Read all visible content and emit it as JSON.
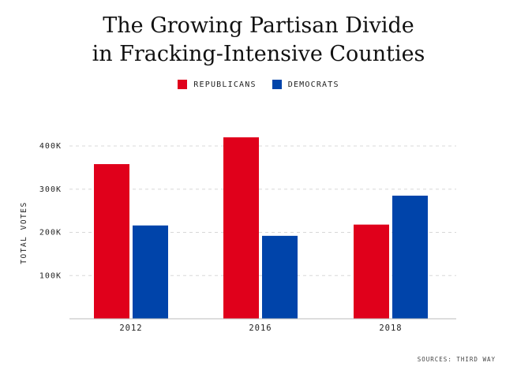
{
  "title_line1": "The Growing Partisan Divide",
  "title_line2": "in Fracking-Intensive Counties",
  "legend": [
    {
      "label": "REPUBLICANS",
      "color": "#e0001b"
    },
    {
      "label": "DEMOCRATS",
      "color": "#0044aa"
    }
  ],
  "source": "SOURCES: THIRD WAY",
  "chart_data": {
    "type": "bar",
    "title": "The Growing Partisan Divide in Fracking-Intensive Counties",
    "categories": [
      "2012",
      "2016",
      "2018"
    ],
    "series": [
      {
        "name": "REPUBLICANS",
        "color": "#e0001b",
        "values": [
          358000,
          420000,
          218000
        ]
      },
      {
        "name": "DEMOCRATS",
        "color": "#0044aa",
        "values": [
          216000,
          192000,
          285000
        ]
      }
    ],
    "ylabel": "TOTAL VOTES",
    "ylim": [
      0,
      400000
    ],
    "yticks": [
      100000,
      200000,
      300000,
      400000
    ],
    "ytick_labels": [
      "100K",
      "200K",
      "300K",
      "400K"
    ],
    "grid": true,
    "legend_position": "top-center"
  }
}
